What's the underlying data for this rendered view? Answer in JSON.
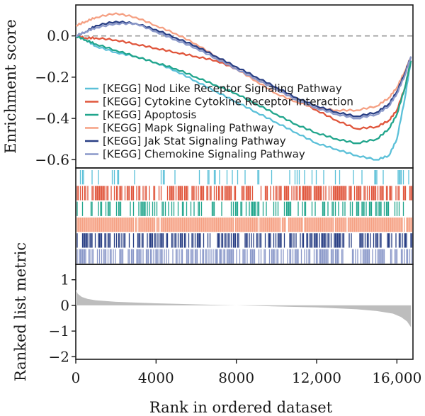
{
  "chart_data": {
    "type": "line",
    "xlabel": "Rank in ordered dataset",
    "x_ticks": [
      "0",
      "4000",
      "8000",
      "12,000",
      "16,000"
    ],
    "x_tick_values": [
      0,
      4000,
      8000,
      12000,
      16000
    ],
    "xlim": [
      0,
      16800
    ],
    "es_panel": {
      "ylabel": "Enrichment score",
      "ylim": [
        -0.64,
        0.15
      ],
      "y_ticks": [
        "0.0",
        "−0.2",
        "−0.4",
        "−0.6"
      ],
      "y_tick_values": [
        0,
        -0.2,
        -0.4,
        -0.6
      ],
      "zero_line": "dashed"
    },
    "series": [
      {
        "name": "[KEGG] Nod Like Receptor Signaling Pathway",
        "color": "#5bc0d8",
        "x": [
          0,
          500,
          1000,
          2000,
          3000,
          4000,
          5000,
          6000,
          7000,
          8000,
          9000,
          10000,
          11000,
          12000,
          13000,
          14000,
          15000,
          15600,
          16000,
          16400,
          16700
        ],
        "y": [
          0.0,
          -0.02,
          -0.05,
          -0.08,
          -0.1,
          -0.13,
          -0.17,
          -0.22,
          -0.27,
          -0.32,
          -0.37,
          -0.42,
          -0.47,
          -0.52,
          -0.55,
          -0.58,
          -0.6,
          -0.58,
          -0.5,
          -0.3,
          -0.12
        ]
      },
      {
        "name": "[KEGG] Cytokine Cytokine Receptor Interaction",
        "color": "#e0563c",
        "x": [
          0,
          500,
          1000,
          2000,
          3000,
          4000,
          5000,
          6000,
          7000,
          8000,
          9000,
          10000,
          11000,
          12000,
          13000,
          14000,
          15000,
          15600,
          16000,
          16400,
          16700
        ],
        "y": [
          0.0,
          -0.01,
          -0.01,
          -0.02,
          -0.04,
          -0.06,
          -0.08,
          -0.1,
          -0.12,
          -0.16,
          -0.21,
          -0.26,
          -0.31,
          -0.36,
          -0.41,
          -0.45,
          -0.44,
          -0.41,
          -0.36,
          -0.25,
          -0.12
        ]
      },
      {
        "name": "[KEGG] Apoptosis",
        "color": "#21a58c",
        "x": [
          0,
          500,
          1000,
          2000,
          3000,
          4000,
          5000,
          6000,
          7000,
          8000,
          9000,
          10000,
          11000,
          12000,
          13000,
          14000,
          15000,
          15600,
          16000,
          16400,
          16700
        ],
        "y": [
          0.0,
          -0.02,
          -0.04,
          -0.07,
          -0.1,
          -0.13,
          -0.16,
          -0.2,
          -0.24,
          -0.28,
          -0.33,
          -0.38,
          -0.43,
          -0.47,
          -0.5,
          -0.52,
          -0.5,
          -0.45,
          -0.38,
          -0.25,
          -0.12
        ]
      },
      {
        "name": "[KEGG] Mapk Signaling Pathway",
        "color": "#f5a083",
        "x": [
          0,
          500,
          1000,
          2000,
          3000,
          4000,
          5000,
          6000,
          7000,
          8000,
          9000,
          10000,
          11000,
          12000,
          13000,
          14000,
          15000,
          15600,
          16000,
          16400,
          16700
        ],
        "y": [
          0.05,
          0.07,
          0.09,
          0.11,
          0.09,
          0.05,
          0.01,
          -0.04,
          -0.1,
          -0.16,
          -0.22,
          -0.28,
          -0.32,
          -0.35,
          -0.36,
          -0.36,
          -0.34,
          -0.3,
          -0.25,
          -0.17,
          -0.1
        ]
      },
      {
        "name": "[KEGG] Jak Stat Signaling Pathway",
        "color": "#283e84",
        "x": [
          0,
          500,
          1000,
          2000,
          3000,
          4000,
          5000,
          6000,
          7000,
          8000,
          9000,
          10000,
          11000,
          12000,
          13000,
          14000,
          15000,
          15600,
          16000,
          16400,
          16700
        ],
        "y": [
          0.0,
          0.02,
          0.05,
          0.07,
          0.06,
          0.03,
          -0.01,
          -0.05,
          -0.1,
          -0.15,
          -0.2,
          -0.25,
          -0.3,
          -0.34,
          -0.37,
          -0.39,
          -0.37,
          -0.33,
          -0.27,
          -0.18,
          -0.1
        ]
      },
      {
        "name": "[KEGG] Chemokine Signaling Pathway",
        "color": "#8a98c9",
        "x": [
          0,
          500,
          1000,
          2000,
          3000,
          4000,
          5000,
          6000,
          7000,
          8000,
          9000,
          10000,
          11000,
          12000,
          13000,
          14000,
          15000,
          15600,
          16000,
          16400,
          16700
        ],
        "y": [
          0.0,
          0.02,
          0.04,
          0.06,
          0.06,
          0.02,
          -0.02,
          -0.06,
          -0.11,
          -0.16,
          -0.21,
          -0.26,
          -0.31,
          -0.35,
          -0.38,
          -0.4,
          -0.38,
          -0.34,
          -0.28,
          -0.19,
          -0.1
        ]
      }
    ],
    "hits_panel": {
      "rows": [
        "[KEGG] Nod Like Receptor Signaling Pathway",
        "[KEGG] Cytokine Cytokine Receptor Interaction",
        "[KEGG] Apoptosis",
        "[KEGG] Mapk Signaling Pathway",
        "[KEGG] Jak Stat Signaling Pathway",
        "[KEGG] Chemokine Signaling Pathway"
      ]
    },
    "ranked_panel": {
      "ylabel": "Ranked list metric",
      "ylim": [
        -2.1,
        1.6
      ],
      "y_ticks": [
        "1",
        "0",
        "−1",
        "−2"
      ],
      "y_tick_values": [
        1,
        0,
        -1,
        -2
      ],
      "fill_color": "#bdbdbd",
      "x": [
        0,
        100,
        300,
        600,
        1000,
        2000,
        4000,
        6000,
        8000,
        10000,
        12000,
        14000,
        15000,
        15800,
        16200,
        16500,
        16700
      ],
      "y": [
        0.62,
        0.45,
        0.33,
        0.25,
        0.2,
        0.14,
        0.08,
        0.04,
        0.0,
        -0.04,
        -0.08,
        -0.15,
        -0.22,
        -0.32,
        -0.45,
        -0.62,
        -0.85
      ]
    },
    "legend": {
      "placement": "lower-left of enrichment panel"
    }
  }
}
